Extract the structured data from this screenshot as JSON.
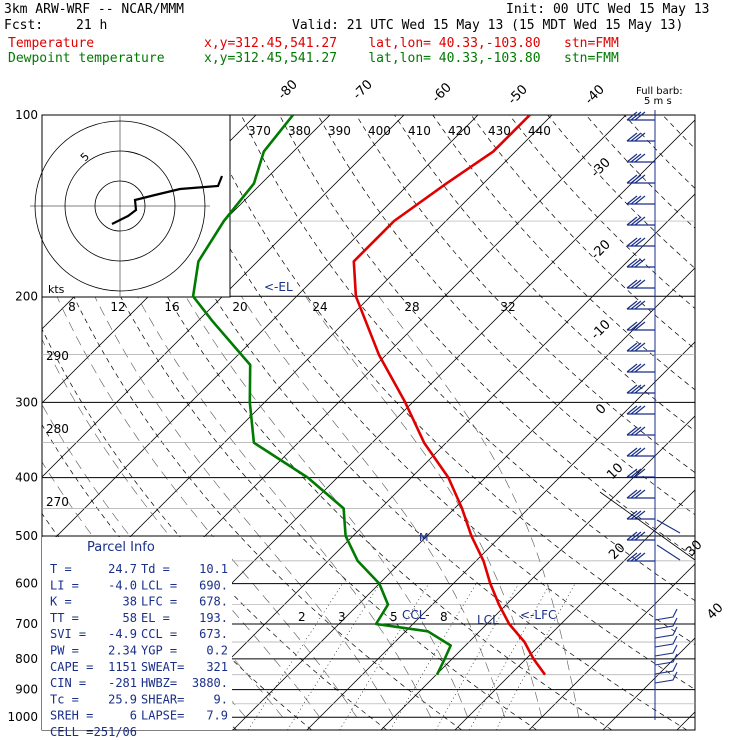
{
  "header": {
    "model": "3km ARW-WRF -- NCAR/MMM",
    "init": "Init: 00 UTC Wed 15 May 13",
    "fcst_label": "Fcst:",
    "fcst_value": "21 h",
    "valid": "Valid: 21 UTC Wed 15 May 13 (15 MDT Wed 15 May 13)"
  },
  "legend": {
    "temperature": {
      "label": "Temperature",
      "info": "x,y=312.45,541.27    lat,lon= 40.33,-103.80   stn=FMM",
      "color": "#e00000"
    },
    "dewpoint": {
      "label": "Dewpoint temperature",
      "info": "x,y=312.45,541.27    lat,lon= 40.33,-103.80   stn=FMM",
      "color": "#007a00"
    }
  },
  "chart_data": {
    "type": "line",
    "subtype": "skew-t log-p sounding",
    "y_axis": {
      "label": "",
      "scale": "log",
      "ticks": [
        100,
        200,
        300,
        400,
        500,
        600,
        700,
        800,
        900,
        1000
      ]
    },
    "isotherm_labels": [
      "-80",
      "-70",
      "-60",
      "-50",
      "-40",
      "-30",
      "-20",
      "-10",
      "0",
      "10",
      "20",
      "30",
      "40"
    ],
    "theta_labels": [
      "370",
      "380",
      "390",
      "400",
      "410",
      "420",
      "430",
      "440"
    ],
    "hodograph": {
      "units": "kts",
      "speed_labels": [
        "8",
        "12",
        "16",
        "20",
        "24",
        "28",
        "32"
      ],
      "ring_label": "5"
    },
    "levels": [
      "<-EL",
      "CCL-",
      "LCL",
      "<-LFC"
    ],
    "mixing_ratio_labels": [
      "2",
      "3",
      "5",
      "8"
    ],
    "left_theta_labels": [
      "290",
      "280",
      "270"
    ],
    "wind_barb_label": "Full barb:",
    "wind_barb_units": "5 m s",
    "series": [
      {
        "name": "Temperature",
        "color": "#e00000",
        "points": [
          [
            850,
            24.7
          ],
          [
            800,
            21
          ],
          [
            750,
            17.5
          ],
          [
            700,
            13
          ],
          [
            650,
            9
          ],
          [
            600,
            5
          ],
          [
            550,
            1
          ],
          [
            500,
            -4
          ],
          [
            450,
            -9
          ],
          [
            400,
            -15
          ],
          [
            350,
            -23
          ],
          [
            300,
            -31
          ],
          [
            250,
            -41
          ],
          [
            200,
            -52
          ],
          [
            175,
            -57
          ],
          [
            150,
            -57
          ],
          [
            130,
            -55
          ],
          [
            115,
            -53
          ],
          [
            100,
            -53
          ]
        ]
      },
      {
        "name": "Dewpoint temperature",
        "color": "#007a00",
        "points": [
          [
            850,
            10.1
          ],
          [
            800,
            9
          ],
          [
            760,
            8
          ],
          [
            720,
            3
          ],
          [
            700,
            -5
          ],
          [
            650,
            -6
          ],
          [
            600,
            -10
          ],
          [
            550,
            -16
          ],
          [
            500,
            -21
          ],
          [
            450,
            -25
          ],
          [
            400,
            -34
          ],
          [
            350,
            -46
          ],
          [
            300,
            -52
          ],
          [
            260,
            -57
          ],
          [
            220,
            -68
          ],
          [
            200,
            -74
          ],
          [
            175,
            -78
          ],
          [
            150,
            -80
          ],
          [
            130,
            -81
          ],
          [
            115,
            -84
          ],
          [
            100,
            -85
          ]
        ]
      }
    ]
  },
  "parcel_info": {
    "title": "Parcel Info",
    "rows": [
      [
        "T   =",
        "24.7",
        "Td  =",
        "10.1"
      ],
      [
        "LI  =",
        "-4.0",
        "LCL =",
        "690."
      ],
      [
        "K   =",
        "38",
        "LFC =",
        "678."
      ],
      [
        "TT  =",
        "58",
        "EL  =",
        "193."
      ],
      [
        "SVI =",
        "-4.9",
        "CCL =",
        "673."
      ],
      [
        "PW  =",
        "2.34",
        "YGP =",
        "0.2"
      ],
      [
        "CAPE =",
        "1151",
        "SWEAT=",
        "321"
      ],
      [
        "CIN  =",
        "-281",
        "HWBZ=",
        "3880."
      ],
      [
        "Tc  =",
        "25.9",
        "SHEAR=",
        "9."
      ],
      [
        "SREH =",
        "6",
        "LAPSE=",
        "7.9"
      ],
      [
        "CELL =",
        "251/06",
        "",
        ""
      ]
    ]
  }
}
